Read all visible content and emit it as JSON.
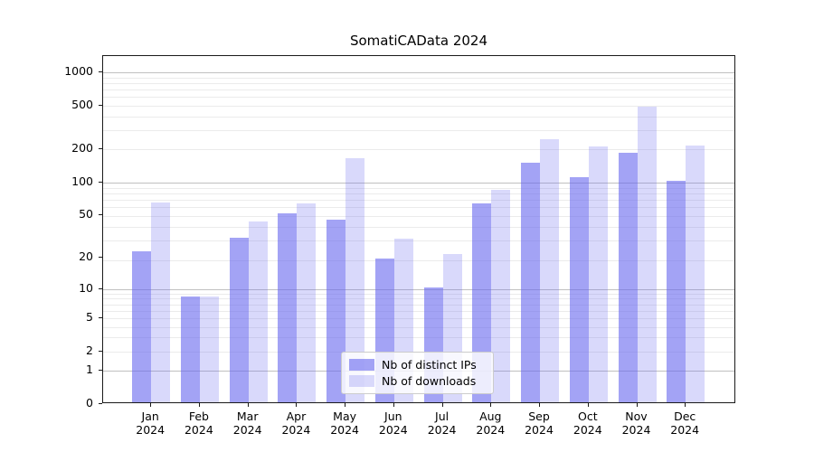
{
  "title": "SomatiCAData 2024",
  "legend": {
    "entries": [
      {
        "label": "Nb of distinct IPs",
        "color": "rgba(102,102,238,0.6)"
      },
      {
        "label": "Nb of downloads",
        "color": "rgba(102,102,238,0.25)"
      }
    ]
  },
  "colors": {
    "bar_base": "#6666ee",
    "bar_distinct_ips": "rgba(102,102,238,0.6)",
    "bar_downloads": "rgba(102,102,238,0.25)",
    "grid_major": "#c0c0c0",
    "grid_minor": "#ebebeb",
    "spine": "#1a1a1a",
    "background": "#ffffff"
  },
  "chart_data": {
    "type": "bar",
    "title": "SomatiCAData 2024",
    "categories": [
      "Jan 2024",
      "Feb 2024",
      "Mar 2024",
      "Apr 2024",
      "May 2024",
      "Jun 2024",
      "Jul 2024",
      "Aug 2024",
      "Sep 2024",
      "Oct 2024",
      "Nov 2024",
      "Dec 2024"
    ],
    "series": [
      {
        "name": "Nb of distinct IPs",
        "values": [
          22,
          8,
          30,
          50,
          44,
          19,
          10,
          62,
          145,
          108,
          180,
          100
        ]
      },
      {
        "name": "Nb of downloads",
        "values": [
          63,
          8,
          42,
          62,
          160,
          29,
          21,
          83,
          240,
          205,
          470,
          210
        ]
      }
    ],
    "xlabel": "",
    "ylabel": "",
    "yscale": "log1p",
    "yticks": [
      0,
      1,
      2,
      5,
      10,
      20,
      50,
      100,
      200,
      500,
      1000
    ],
    "major_grid_values": [
      1,
      10,
      100,
      1000
    ],
    "minor_grid_log1p_positions": [
      3,
      4,
      5,
      6,
      7,
      8,
      9,
      10,
      20,
      30,
      40,
      50,
      60,
      70,
      80,
      90,
      200,
      300,
      400,
      500,
      600,
      700,
      800,
      900
    ],
    "ylim": [
      0,
      1400
    ],
    "grid": true,
    "legend_position": "lower center"
  }
}
